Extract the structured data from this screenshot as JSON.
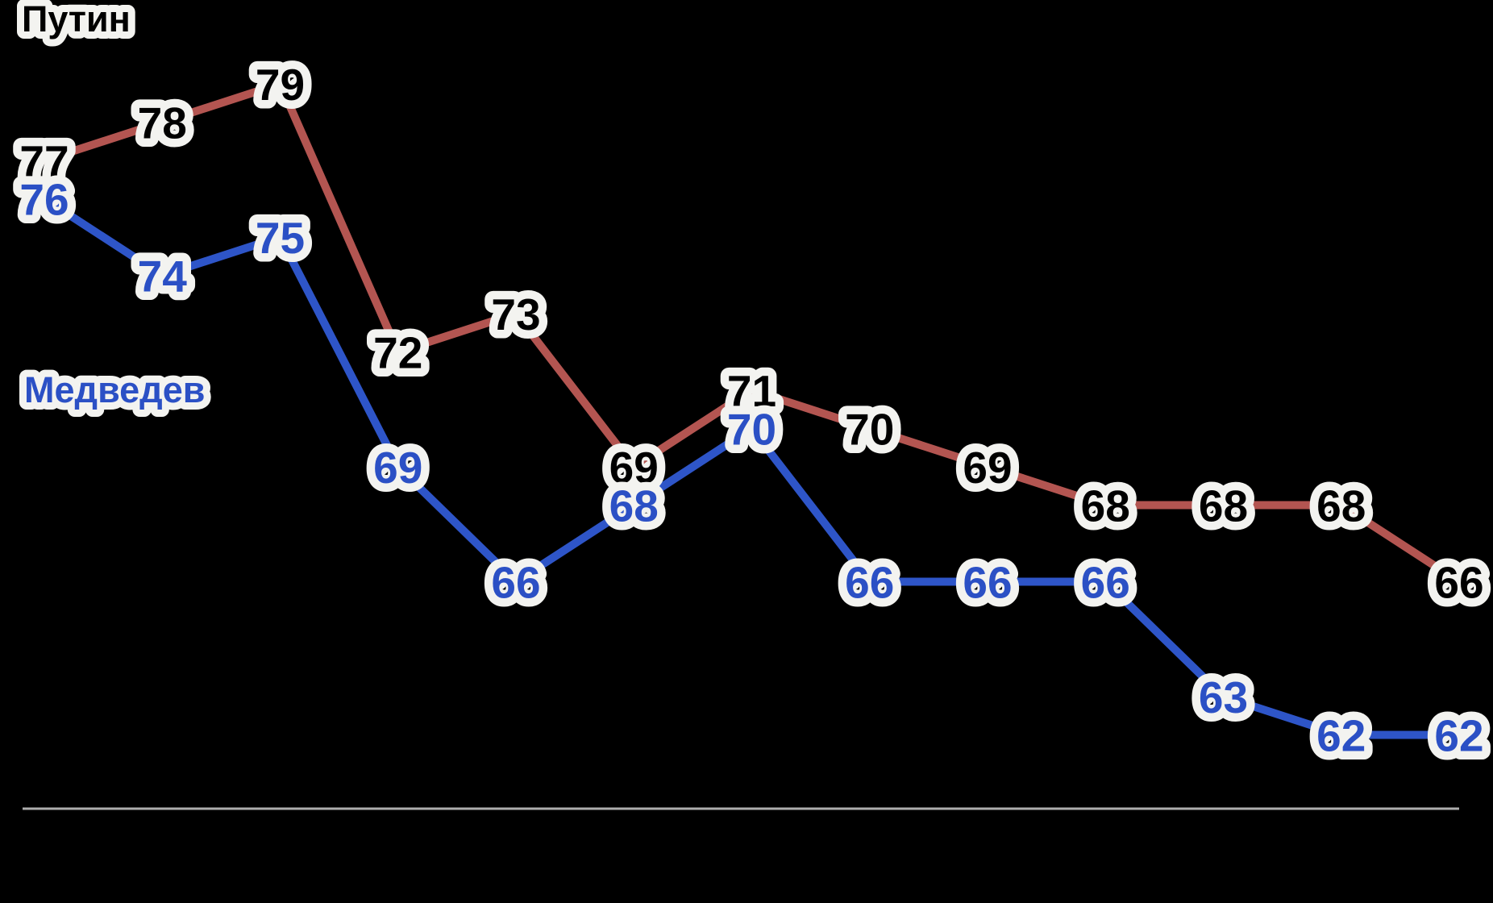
{
  "background_color": "#000000",
  "halo_color": "#f3f3f0",
  "axis": {
    "baseline_color": "#adadad"
  },
  "chart_data": {
    "type": "line",
    "title": "",
    "series": [
      {
        "name": "Путин",
        "line_color": "#b35551",
        "label_color": "#a84playable944",
        "values": [
          77,
          78,
          79,
          72,
          73,
          69,
          71,
          70,
          69,
          68,
          68,
          68,
          66
        ]
      },
      {
        "name": "Медведев",
        "line_color": "#2e55c8",
        "label_color": "#2b50c5",
        "values": [
          76,
          74,
          75,
          69,
          66,
          68,
          70,
          66,
          66,
          66,
          63,
          62,
          62
        ]
      }
    ],
    "point_count": 13,
    "x_tick_labels": [],
    "ylim": [
      60,
      81
    ],
    "grid": false,
    "x_axis_baseline": true,
    "value_labels": true,
    "legend_position": "inline-series-labels"
  }
}
